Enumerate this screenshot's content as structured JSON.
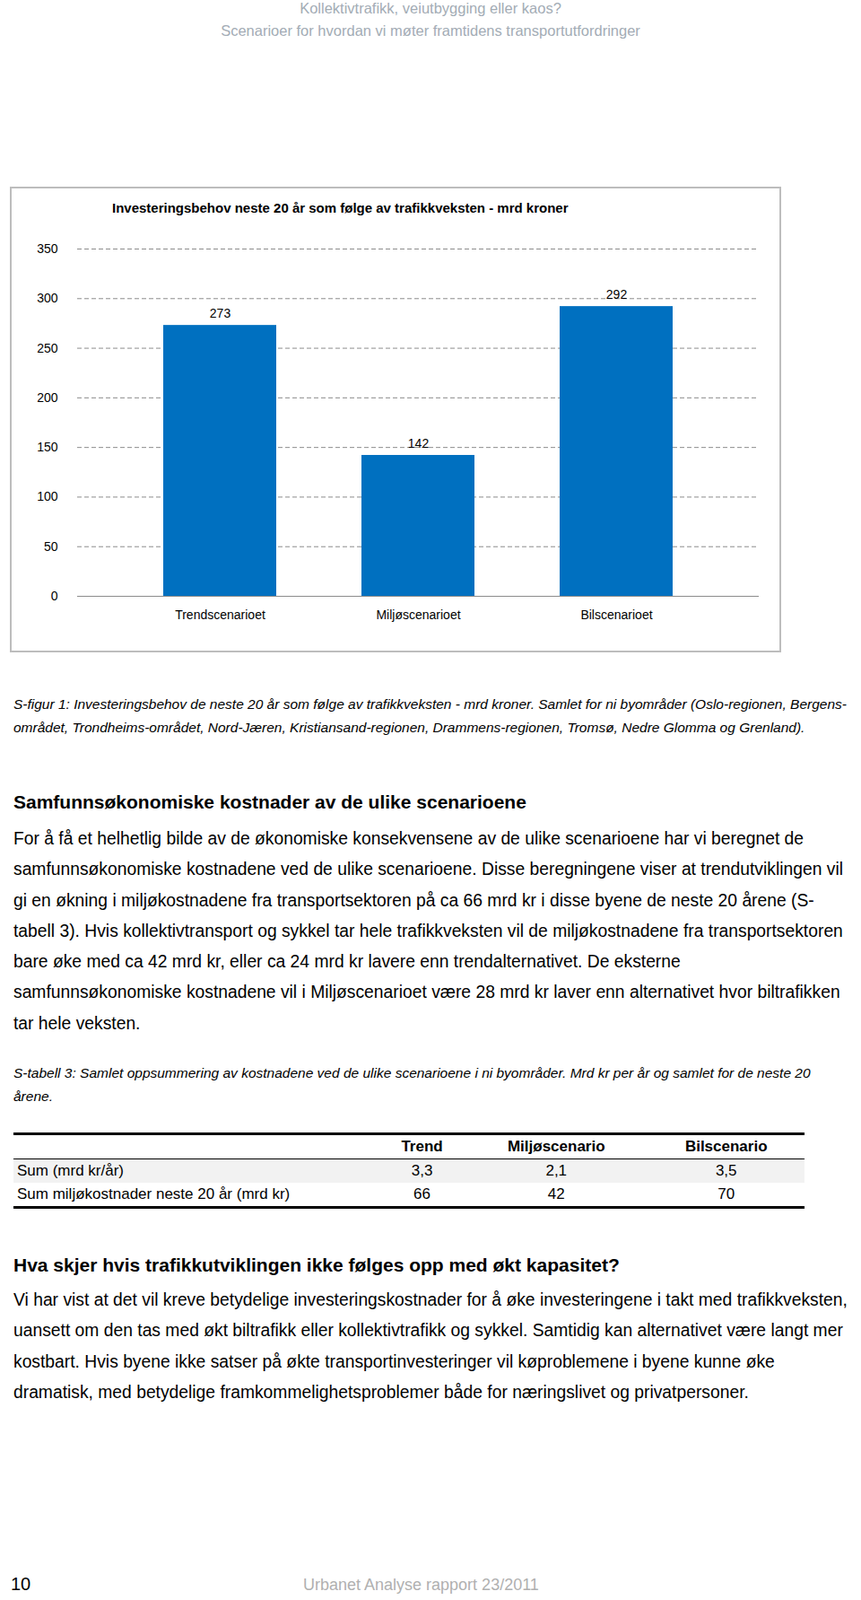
{
  "header": {
    "title": "Kollektivtrafikk, veiutbygging eller kaos?",
    "subtitle": "Scenarioer for hvordan vi møter framtidens transportutfordringer"
  },
  "chart_data": {
    "type": "bar",
    "title": "Investeringsbehov  neste 20 år som følge av trafikkveksten - mrd kroner",
    "categories": [
      "Trendscenarioet",
      "Miljøscenarioet",
      "Bilscenarioet"
    ],
    "values": [
      273,
      142,
      292
    ],
    "color": "#0070c0",
    "ylim": [
      0,
      350
    ],
    "yticks": [
      0,
      50,
      100,
      150,
      200,
      250,
      300,
      350
    ],
    "grid": true,
    "data_labels": true
  },
  "caption": "S-figur 1: Investeringsbehov de neste 20 år som følge av trafikkveksten - mrd kroner. Samlet for ni byområder (Oslo-regionen, Bergens-området, Trondheims-området, Nord-Jæren, Kristiansand-regionen, Drammens-regionen, Tromsø, Nedre Glomma og Grenland).",
  "sections": [
    {
      "heading": "Samfunnsøkonomiske kostnader av de ulike scenarioene",
      "text": "For å få et helhetlig bilde av de økonomiske konsekvensene av de ulike scenarioene har vi beregnet de samfunnsøkonomiske kostnadene ved de ulike scenarioene. Disse beregningene viser at trendutviklingen vil gi en økning i miljøkostnadene fra transportsektoren på ca 66 mrd kr i disse byene de neste 20 årene (S-tabell 3). Hvis kollektivtransport og sykkel tar hele trafikkveksten vil de miljøkostnadene fra transportsektoren bare øke med ca 42 mrd kr, eller ca 24 mrd kr lavere enn trendalternativet. De eksterne samfunnsøkonomiske kostnadene vil i Miljøscenarioet være 28 mrd kr laver enn alternativet hvor biltrafikken tar hele veksten."
    },
    {
      "heading": "Hva skjer hvis trafikkutviklingen ikke følges opp med økt kapasitet?",
      "text": "Vi har vist at det vil kreve betydelige investeringskostnader for å øke investeringene i takt med trafikkveksten, uansett om den tas med økt biltrafikk eller kollektivtrafikk og sykkel. Samtidig kan alternativet være langt mer kostbart. Hvis byene ikke satser på økte transportinvesteringer vil køproblemene i byene kunne øke dramatisk, med betydelige framkommelighetsproblemer både for næringslivet og privatpersoner."
    }
  ],
  "table": {
    "caption": "S-tabell 3: Samlet oppsummering av kostnadene ved de ulike scenarioene i ni byområder.  Mrd kr per år og samlet for de neste 20 årene.",
    "header": [
      "",
      "Trend",
      "Miljøscenario",
      "Bilscenario"
    ],
    "rows": [
      [
        "Sum (mrd kr/år)",
        "3,3",
        "2,1",
        "3,5"
      ],
      [
        "Sum miljøkostnader neste 20 år (mrd kr)",
        "66",
        "42",
        "70"
      ]
    ]
  },
  "footer": {
    "page": "10",
    "report": "Urbanet Analyse rapport 23/2011"
  }
}
